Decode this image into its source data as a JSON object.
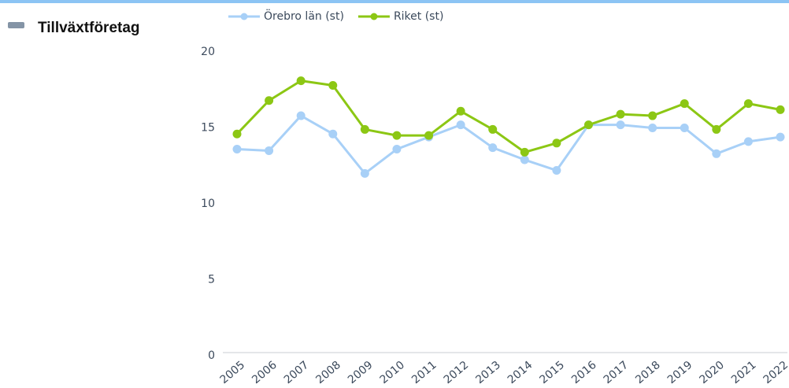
{
  "sidebar": {
    "label": "Tillväxtföretag"
  },
  "chart_data": {
    "type": "line",
    "categories": [
      "2005",
      "2006",
      "2007",
      "2008",
      "2009",
      "2010",
      "2011",
      "2012",
      "2013",
      "2014",
      "2015",
      "2016",
      "2017",
      "2018",
      "2019",
      "2020",
      "2021",
      "2022"
    ],
    "series": [
      {
        "name": "Örebro län (st)",
        "color": "#a8d0f7",
        "values": [
          13.6,
          13.5,
          15.8,
          14.6,
          12.0,
          13.6,
          14.4,
          15.2,
          13.7,
          12.9,
          12.2,
          15.2,
          15.2,
          15.0,
          15.0,
          13.3,
          14.1,
          14.4
        ]
      },
      {
        "name": "Riket (st)",
        "color": "#8cc714",
        "values": [
          14.6,
          16.8,
          18.1,
          17.8,
          14.9,
          14.5,
          14.5,
          16.1,
          14.9,
          13.4,
          14.0,
          15.2,
          15.9,
          15.8,
          16.6,
          14.9,
          16.6,
          16.2
        ]
      }
    ],
    "ylim": [
      0,
      20
    ],
    "yticks": [
      0,
      5,
      10,
      15,
      20
    ],
    "grid": false,
    "legend": "top"
  }
}
